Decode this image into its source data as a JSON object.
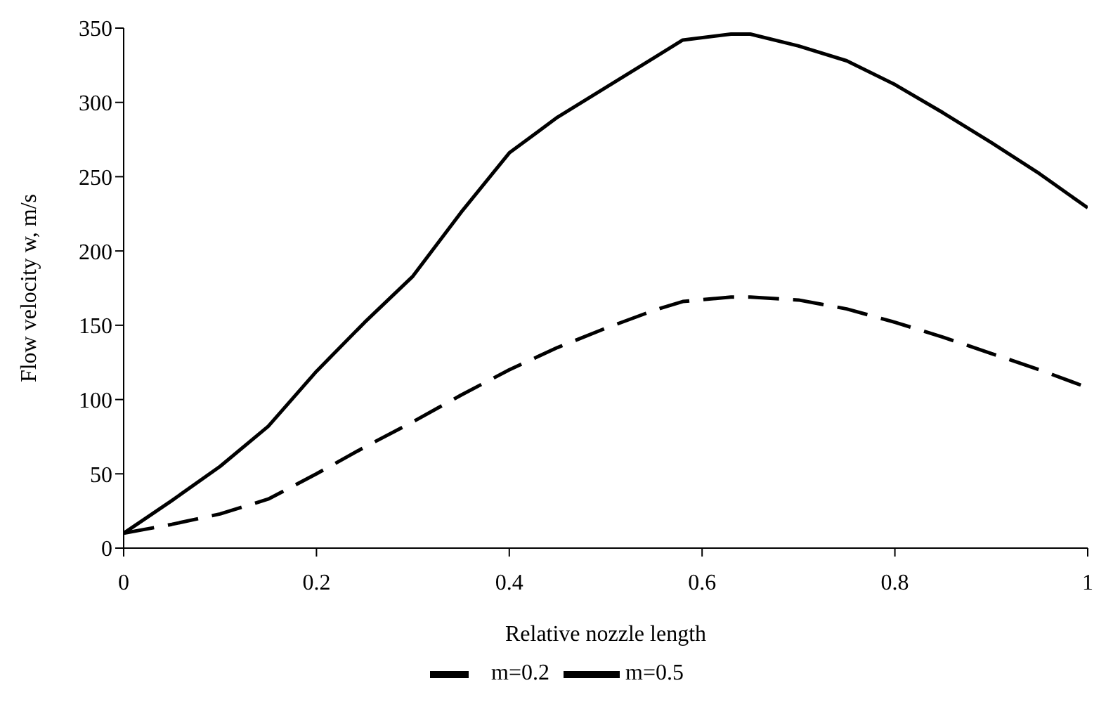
{
  "chart_data": {
    "type": "line",
    "xlabel": "Relative nozzle length",
    "ylabel": "Flow velocity w, m/s",
    "x": [
      0,
      0.05,
      0.1,
      0.15,
      0.2,
      0.25,
      0.3,
      0.35,
      0.4,
      0.45,
      0.5,
      0.55,
      0.58,
      0.63,
      0.65,
      0.7,
      0.75,
      0.8,
      0.85,
      0.9,
      0.95,
      1
    ],
    "series": [
      {
        "name": "m=0.2",
        "color": "#000000",
        "line_style": "dashed",
        "values": [
          10,
          16,
          23,
          33,
          50,
          68,
          85,
          103,
          120,
          135,
          148,
          160,
          166,
          169,
          169,
          167,
          161,
          152,
          142,
          131,
          120,
          108
        ]
      },
      {
        "name": "m=0.5",
        "color": "#000000",
        "line_style": "solid",
        "values": [
          10,
          32,
          55,
          82,
          119,
          152,
          183,
          226,
          266,
          290,
          310,
          330,
          342,
          346,
          346,
          338,
          328,
          312,
          293,
          273,
          252,
          229
        ]
      }
    ],
    "xlim": [
      0,
      1
    ],
    "xticks": [
      0,
      0.2,
      0.4,
      0.6,
      0.8,
      1
    ],
    "ylim": [
      0,
      350
    ],
    "yticks": [
      0,
      50,
      100,
      150,
      200,
      250,
      300,
      350
    ],
    "grid": false,
    "legend": "bottom",
    "marker": "none"
  }
}
